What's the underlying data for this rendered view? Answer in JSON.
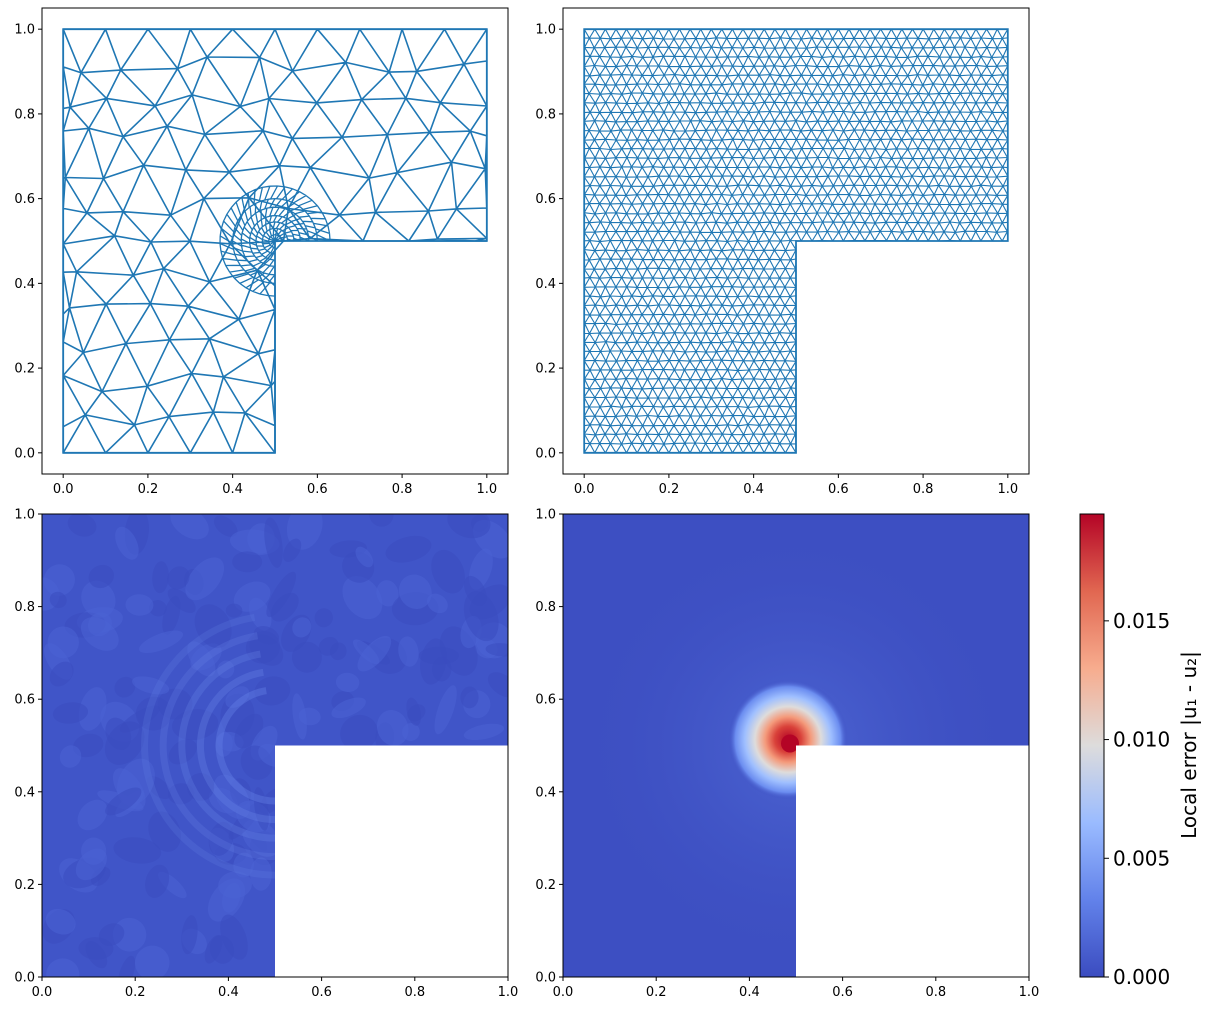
{
  "chart_data": [
    {
      "type": "mesh",
      "panel": "top-left",
      "xlim": [
        -0.05,
        1.05
      ],
      "ylim": [
        -0.05,
        1.05
      ],
      "x_ticks": [
        "0.0",
        "0.2",
        "0.4",
        "0.6",
        "0.8",
        "1.0"
      ],
      "y_ticks": [
        "0.0",
        "0.2",
        "0.4",
        "0.6",
        "0.8",
        "1.0"
      ],
      "domain_outline": [
        [
          0,
          0
        ],
        [
          0.5,
          0
        ],
        [
          0.5,
          0.5
        ],
        [
          1,
          0.5
        ],
        [
          1,
          1
        ],
        [
          0,
          1
        ]
      ],
      "mesh_density": "coarse, refined near corner (0.5, 0.5)",
      "refinement_point": [
        0.5,
        0.5
      ],
      "base_spacing": 0.1,
      "color": "#1f77b4"
    },
    {
      "type": "mesh",
      "panel": "top-right",
      "xlim": [
        -0.05,
        1.05
      ],
      "ylim": [
        -0.05,
        1.05
      ],
      "x_ticks": [
        "0.0",
        "0.2",
        "0.4",
        "0.6",
        "0.8",
        "1.0"
      ],
      "y_ticks": [
        "0.0",
        "0.2",
        "0.4",
        "0.6",
        "0.8",
        "1.0"
      ],
      "domain_outline": [
        [
          0,
          0
        ],
        [
          0.5,
          0
        ],
        [
          0.5,
          0.5
        ],
        [
          1,
          0.5
        ],
        [
          1,
          1
        ],
        [
          0,
          1
        ]
      ],
      "mesh_density": "fine uniform",
      "base_spacing": 0.025,
      "color": "#1f77b4"
    },
    {
      "type": "heatmap",
      "panel": "bottom-left",
      "xlim": [
        0,
        1
      ],
      "ylim": [
        0,
        1
      ],
      "x_ticks": [
        "0.0",
        "0.2",
        "0.4",
        "0.6",
        "0.8",
        "1.0"
      ],
      "y_ticks": [
        "0.0",
        "0.2",
        "0.4",
        "0.6",
        "0.8",
        "1.0"
      ],
      "excluded_region": [
        [
          0.5,
          0
        ],
        [
          1,
          0
        ],
        [
          1,
          0.5
        ],
        [
          0.5,
          0.5
        ]
      ],
      "field": "low error everywhere (~0.0002-0.001), faint band around corner"
    },
    {
      "type": "heatmap",
      "panel": "bottom-right",
      "xlim": [
        0,
        1
      ],
      "ylim": [
        0,
        1
      ],
      "x_ticks": [
        "0.0",
        "0.2",
        "0.4",
        "0.6",
        "0.8",
        "1.0"
      ],
      "y_ticks": [
        "0.0",
        "0.2",
        "0.4",
        "0.6",
        "0.8",
        "1.0"
      ],
      "excluded_region": [
        [
          0.5,
          0
        ],
        [
          1,
          0
        ],
        [
          1,
          0.5
        ],
        [
          0.5,
          0.5
        ]
      ],
      "peak_location": [
        0.5,
        0.5
      ],
      "peak_value": 0.02,
      "field": "error concentrated at re-entrant corner"
    }
  ],
  "colorbar": {
    "label": "Local error |u₁ - u₂|",
    "vmin": 0,
    "vmax": 0.0195,
    "ticks": [
      0,
      0.005,
      0.01,
      0.015
    ],
    "tick_labels": [
      "0.000",
      "0.005",
      "0.010",
      "0.015"
    ],
    "colormap": "coolwarm",
    "colors": [
      "#3b4cc0",
      "#6f92f3",
      "#aac7fd",
      "#dddcdc",
      "#f7b89c",
      "#e7745b",
      "#b40426"
    ]
  }
}
